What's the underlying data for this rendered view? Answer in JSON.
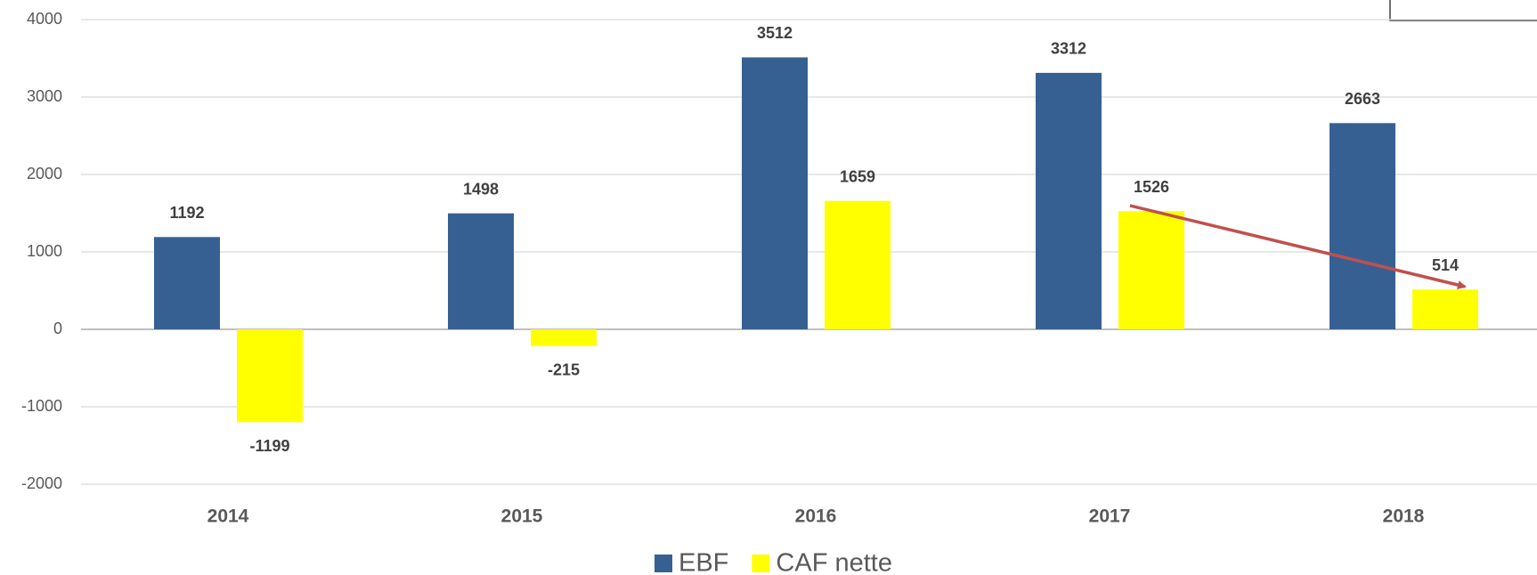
{
  "chart_data": {
    "type": "bar",
    "categories": [
      "2014",
      "2015",
      "2016",
      "2017",
      "2018"
    ],
    "series": [
      {
        "name": "EBF",
        "color": "#366092",
        "values": [
          1192,
          1498,
          3512,
          3312,
          2663
        ]
      },
      {
        "name": "CAF nette",
        "color": "#ffff00",
        "values": [
          -1199,
          -215,
          1659,
          1526,
          514
        ]
      }
    ],
    "ylim": [
      -2000,
      4000
    ],
    "yticks": [
      -2000,
      -1000,
      0,
      1000,
      2000,
      3000,
      4000
    ],
    "grid": true
  }
}
